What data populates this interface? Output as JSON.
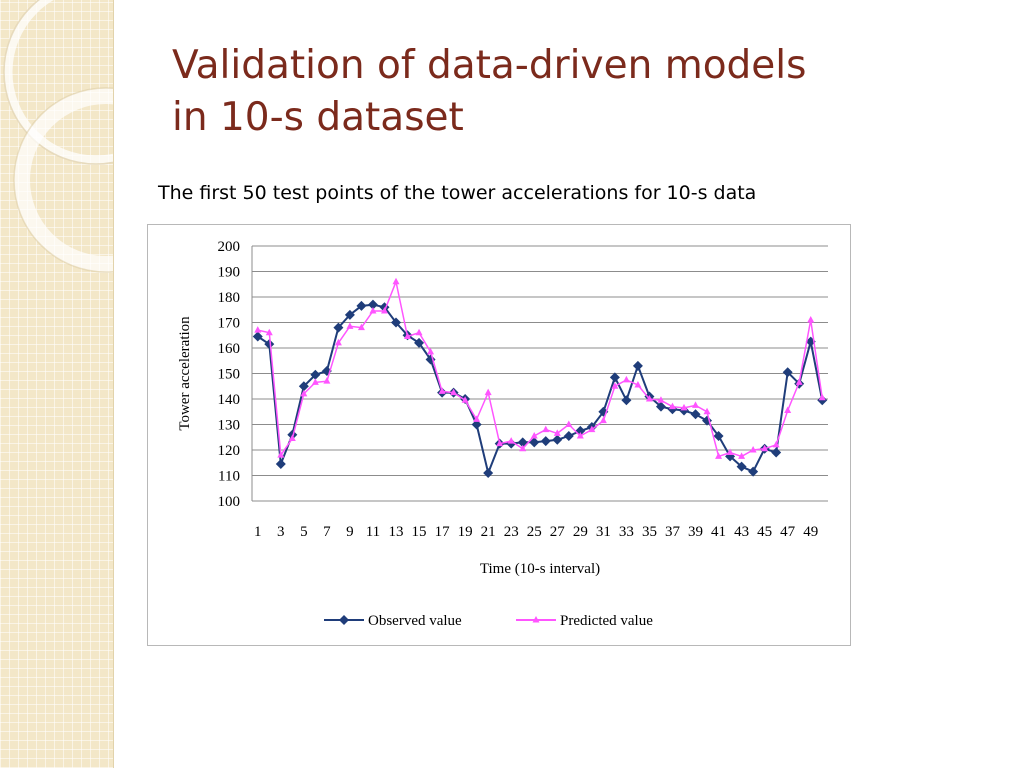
{
  "slide": {
    "title_line1": "Validation of data-driven models",
    "title_line2": "in 10-s dataset",
    "caption": "The first 50 test points of the tower accelerations for 10-s data",
    "title_color": "#7b2a1c",
    "side_panel_color": "#f3e7c8"
  },
  "chart_data": {
    "type": "line",
    "xlabel": "Time (10-s  interval)",
    "ylabel": "Tower acceleration",
    "ylim": [
      100,
      200
    ],
    "yticks": [
      100,
      110,
      120,
      130,
      140,
      150,
      160,
      170,
      180,
      190,
      200
    ],
    "x": [
      1,
      2,
      3,
      4,
      5,
      6,
      7,
      8,
      9,
      10,
      11,
      12,
      13,
      14,
      15,
      16,
      17,
      18,
      19,
      20,
      21,
      22,
      23,
      24,
      25,
      26,
      27,
      28,
      29,
      30,
      31,
      32,
      33,
      34,
      35,
      36,
      37,
      38,
      39,
      40,
      41,
      42,
      43,
      44,
      45,
      46,
      47,
      48,
      49,
      50
    ],
    "xtick_labels": [
      "1",
      "3",
      "5",
      "7",
      "9",
      "11",
      "13",
      "15",
      "17",
      "19",
      "21",
      "23",
      "25",
      "27",
      "29",
      "31",
      "33",
      "35",
      "37",
      "39",
      "41",
      "43",
      "45",
      "47",
      "49"
    ],
    "grid": "horizontal",
    "legend_position": "bottom",
    "series": [
      {
        "name": "Observed value",
        "color": "#1f3d7a",
        "marker": "diamond",
        "values": [
          164.5,
          161.5,
          114.5,
          126,
          145,
          149.5,
          151,
          168,
          173,
          176.5,
          177,
          176,
          170,
          165,
          162,
          155.5,
          142.5,
          142.5,
          140,
          130,
          111,
          122.5,
          122.5,
          123,
          123,
          123.5,
          124,
          125.5,
          127.5,
          129,
          135,
          148.5,
          139.5,
          153,
          141,
          137,
          136,
          135.5,
          134,
          131.5,
          125.5,
          117.5,
          113.5,
          111.5,
          120.5,
          119,
          150.5,
          146,
          162.5,
          139.5
        ]
      },
      {
        "name": "Predicted value",
        "color": "#ff55ff",
        "marker": "triangle",
        "values": [
          167,
          166,
          118,
          124.5,
          142,
          146.5,
          147,
          162,
          168.5,
          168,
          174.5,
          174.5,
          186,
          164.5,
          166,
          158.5,
          143,
          142.5,
          139.5,
          132,
          142.5,
          122.5,
          123.5,
          120.5,
          125.5,
          128,
          126.5,
          130,
          125.5,
          128,
          131.5,
          145,
          147.5,
          145.5,
          140,
          139.5,
          137,
          136.5,
          137.5,
          135,
          117.5,
          119,
          117.5,
          120,
          120.5,
          122,
          135.5,
          146.5,
          171,
          140.5
        ]
      }
    ]
  }
}
